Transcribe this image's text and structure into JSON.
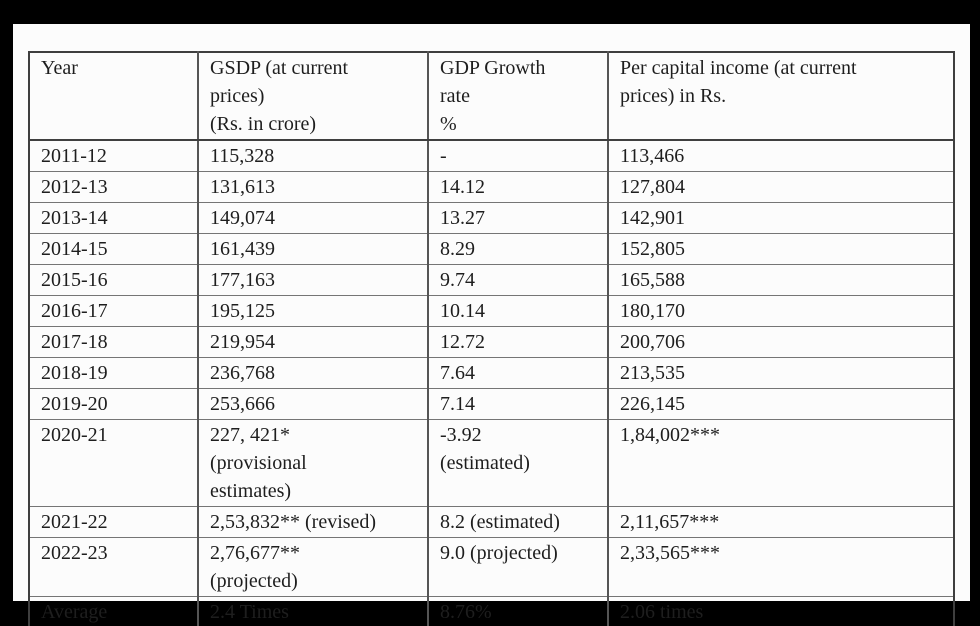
{
  "colors": {
    "background": "#000000",
    "sheet": "#fcfcfc",
    "border_dark": "#3f3f3f",
    "border_mid": "#555555",
    "border_light": "#757575",
    "text": "#1e1e1e"
  },
  "table": {
    "headers": [
      "Year",
      "GSDP (at current\nprices)\n(Rs. in  crore)",
      "GDP Growth\nrate\n%",
      "Per capital income (at current\nprices) in Rs."
    ],
    "rows": [
      [
        "2011-12",
        "115,328",
        "-",
        "113,466"
      ],
      [
        "2012-13",
        "131,613",
        "14.12",
        "127,804"
      ],
      [
        "2013-14",
        "149,074",
        "13.27",
        "142,901"
      ],
      [
        "2014-15",
        "161,439",
        "8.29",
        "152,805"
      ],
      [
        "2015-16",
        "177,163",
        "9.74",
        "165,588"
      ],
      [
        "2016-17",
        "195,125",
        "10.14",
        "180,170"
      ],
      [
        "2017-18",
        "219,954",
        "12.72",
        "200,706"
      ],
      [
        "2018-19",
        "236,768",
        "7.64",
        "213,535"
      ],
      [
        "2019-20",
        "253,666",
        "7.14",
        "226,145"
      ],
      [
        "2020-21",
        "227, 421*\n(provisional\nestimates)",
        "-3.92\n(estimated)",
        "1,84,002***"
      ],
      [
        "2021-22",
        "2,53,832** (revised)",
        "8.2 (estimated)",
        "2,11,657***"
      ],
      [
        "2022-23",
        "2,76,677**\n(projected)",
        "9.0 (projected)",
        "2,33,565***"
      ],
      [
        "Average",
        "2.4 Times",
        "8.76%",
        "2.06 times"
      ]
    ]
  },
  "chart_data": {
    "type": "table",
    "title": "",
    "columns": [
      "Year",
      "GSDP (at current prices) (Rs. in crore)",
      "GDP Growth rate %",
      "Per capital income (at current prices) in Rs."
    ],
    "rows": [
      [
        "2011-12",
        "115,328",
        "-",
        "113,466"
      ],
      [
        "2012-13",
        "131,613",
        "14.12",
        "127,804"
      ],
      [
        "2013-14",
        "149,074",
        "13.27",
        "142,901"
      ],
      [
        "2014-15",
        "161,439",
        "8.29",
        "152,805"
      ],
      [
        "2015-16",
        "177,163",
        "9.74",
        "165,588"
      ],
      [
        "2016-17",
        "195,125",
        "10.14",
        "180,170"
      ],
      [
        "2017-18",
        "219,954",
        "12.72",
        "200,706"
      ],
      [
        "2018-19",
        "236,768",
        "7.64",
        "213,535"
      ],
      [
        "2019-20",
        "253,666",
        "7.14",
        "226,145"
      ],
      [
        "2020-21",
        "227, 421* (provisional estimates)",
        "-3.92 (estimated)",
        "1,84,002***"
      ],
      [
        "2021-22",
        "2,53,832** (revised)",
        "8.2 (estimated)",
        "2,11,657***"
      ],
      [
        "2022-23",
        "2,76,677** (projected)",
        "9.0 (projected)",
        "2,33,565***"
      ],
      [
        "Average",
        "2.4 Times",
        "8.76%",
        "2.06 times"
      ]
    ]
  }
}
